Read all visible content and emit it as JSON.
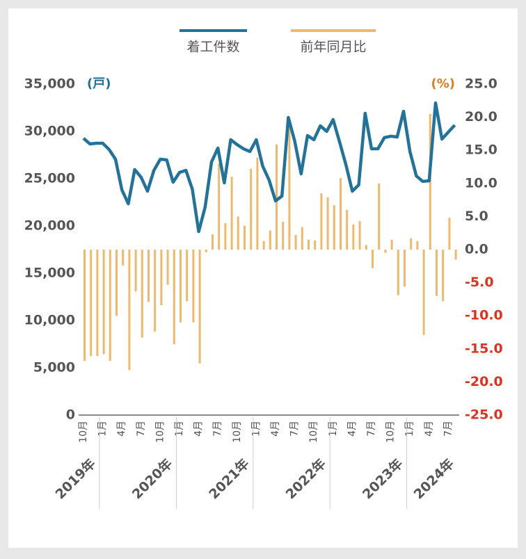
{
  "chart_data": {
    "type": "bar_line",
    "legend": "top",
    "y_unit": "(戸)",
    "y2_unit": "(%)",
    "y_unit_color": "#1f6f9c",
    "y2_unit_color": "#e07b1a",
    "y2_negative_color": "#e0301e",
    "categories": [
      "10月",
      null,
      null,
      "1月",
      null,
      null,
      "4月",
      null,
      null,
      "7月",
      null,
      null,
      "10月",
      null,
      null,
      "1月",
      null,
      null,
      "4月",
      null,
      null,
      "7月",
      null,
      null,
      "10月",
      null,
      null,
      "1月",
      null,
      null,
      "4月",
      null,
      null,
      "7月",
      null,
      null,
      "10月",
      null,
      null,
      "1月",
      null,
      null,
      "4月",
      null,
      null,
      "7月",
      null,
      null,
      "10月",
      null,
      null,
      "1月",
      null,
      null,
      "4月",
      null,
      null,
      "7月",
      null
    ],
    "year_labels": [
      "2019年",
      "2020年",
      "2021年",
      "2022年",
      "2023年",
      "2024年"
    ],
    "series": [
      {
        "name": "着工件数",
        "type": "line",
        "color": "#21739c",
        "axis": "y",
        "values": [
          29270,
          28680,
          28750,
          28750,
          28090,
          27060,
          23820,
          22350,
          25960,
          25150,
          23680,
          25880,
          27060,
          26990,
          24630,
          25660,
          25880,
          23900,
          19410,
          21990,
          26760,
          28240,
          24560,
          29120,
          28600,
          28160,
          27870,
          29120,
          26320,
          24850,
          22650,
          23160,
          31470,
          28970,
          25510,
          29560,
          29120,
          30590,
          30000,
          31250,
          28900,
          26470,
          23680,
          24340,
          31910,
          28160,
          28160,
          29340,
          29490,
          29410,
          32130,
          27870,
          25290,
          24710,
          24780,
          33010,
          29190,
          29930,
          30660
        ]
      },
      {
        "name": "前年同月比",
        "type": "bar",
        "color": "#f0b868",
        "axis": "y2",
        "values": [
          -16.8,
          -16.1,
          -16.1,
          -15.8,
          -16.8,
          -10.0,
          -2.4,
          -18.2,
          -6.3,
          -13.3,
          -7.9,
          -12.4,
          -8.4,
          -5.3,
          -14.3,
          -11.0,
          -7.8,
          -11.0,
          -17.2,
          -0.4,
          2.3,
          13.0,
          4.0,
          11.0,
          5.0,
          3.6,
          12.2,
          13.9,
          1.3,
          2.9,
          15.9,
          4.2,
          18.7,
          2.2,
          3.4,
          1.5,
          1.4,
          8.5,
          7.9,
          6.7,
          10.8,
          6.0,
          3.8,
          4.3,
          0.7,
          -2.8,
          10.0,
          -0.5,
          1.5,
          -6.9,
          -5.6,
          1.7,
          1.3,
          -12.9,
          20.5,
          -7.0,
          -7.8,
          4.8,
          -1.5
        ]
      }
    ],
    "ylim": [
      0,
      35000
    ],
    "yticks": [
      0,
      {
        "value": 5000,
        "label": "5,000"
      },
      {
        "value": 10000,
        "label": "10,000"
      },
      {
        "value": 15000,
        "label": "15,000"
      },
      {
        "value": 20000,
        "label": "20,000"
      },
      {
        "value": 25000,
        "label": "25,000"
      },
      {
        "value": 30000,
        "label": "30,000"
      },
      {
        "value": 35000,
        "label": "35,000"
      }
    ],
    "y2lim": [
      -25,
      25
    ],
    "y2ticks": [
      {
        "value": -25,
        "label": "-25.0"
      },
      {
        "value": -20,
        "label": "-20.0"
      },
      {
        "value": -15,
        "label": "-15.0"
      },
      {
        "value": -10,
        "label": "-10.0"
      },
      {
        "value": -5,
        "label": "-5.0"
      },
      {
        "value": 0,
        "label": "0.0"
      },
      {
        "value": 5,
        "label": "5.0"
      },
      {
        "value": 10,
        "label": "10.0"
      },
      {
        "value": 15,
        "label": "15.0"
      },
      {
        "value": 20,
        "label": "20.0"
      },
      {
        "value": 25,
        "label": "25.0"
      }
    ]
  }
}
